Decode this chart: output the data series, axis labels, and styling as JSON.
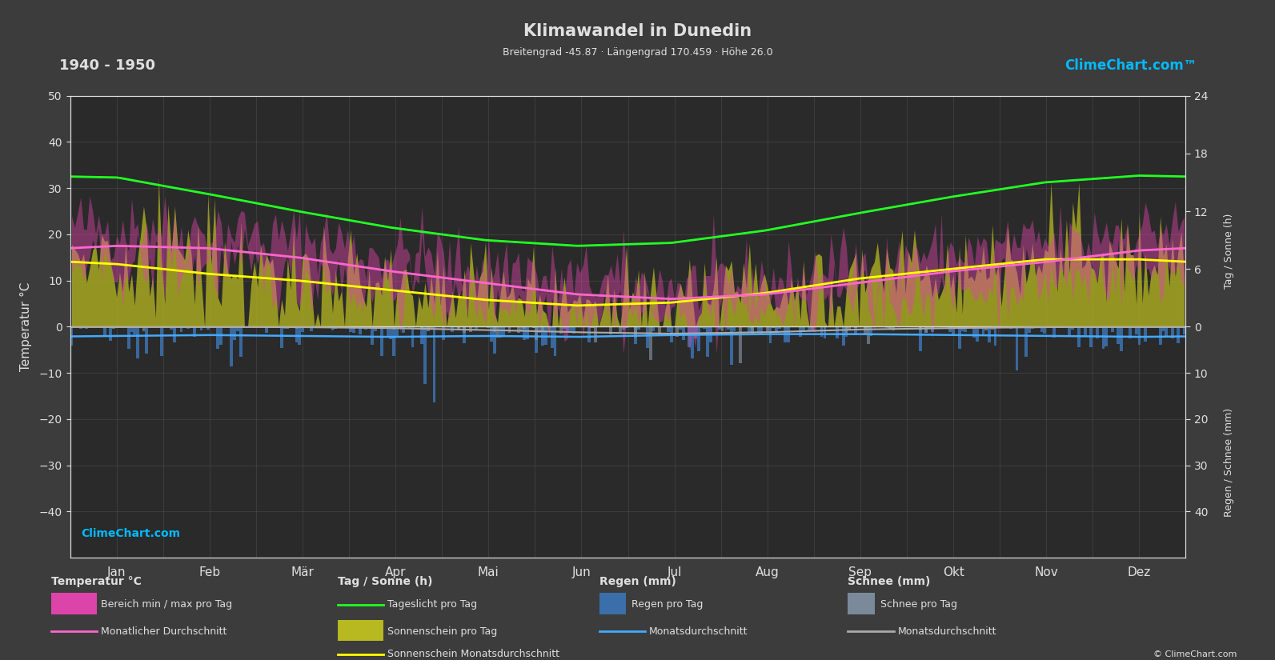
{
  "title": "Klimawandel in Dunedin",
  "subtitle": "Breitengrad -45.87 · Längengrad 170.459 · Höhe 26.0",
  "period": "1940 - 1950",
  "background_color": "#3c3c3c",
  "plot_bg_color": "#2a2a2a",
  "text_color": "#e0e0e0",
  "grid_color": "#555555",
  "months_labels": [
    "Jan",
    "Feb",
    "Mär",
    "Apr",
    "Mai",
    "Jun",
    "Jul",
    "Aug",
    "Sep",
    "Okt",
    "Nov",
    "Dez"
  ],
  "temp_ylim_min": -50,
  "temp_ylim_max": 50,
  "temp_yticks": [
    -40,
    -30,
    -20,
    -10,
    0,
    10,
    20,
    30,
    40,
    50
  ],
  "sun_ylim_min": 0,
  "sun_ylim_max": 24,
  "sun_yticks": [
    0,
    6,
    12,
    18,
    24
  ],
  "rain_ylim_min": 0,
  "rain_ylim_max": 40,
  "rain_yticks": [
    0,
    10,
    20,
    30,
    40
  ],
  "temp_max_monthly": [
    22,
    21,
    19,
    16,
    13,
    10,
    9,
    10,
    13,
    16,
    18,
    21
  ],
  "temp_min_monthly": [
    13,
    13,
    11,
    8,
    6,
    4,
    3,
    4,
    6,
    8,
    10,
    12
  ],
  "temp_avg_monthly": [
    17.5,
    17.0,
    15.0,
    12.0,
    9.5,
    7.0,
    6.0,
    7.0,
    9.5,
    12.0,
    14.0,
    16.5
  ],
  "daylight_monthly": [
    15.5,
    13.8,
    12.0,
    10.3,
    9.0,
    8.4,
    8.7,
    10.0,
    11.8,
    13.5,
    15.0,
    15.7
  ],
  "sunshine_monthly": [
    6.5,
    5.5,
    4.8,
    3.8,
    2.8,
    2.2,
    2.5,
    3.5,
    5.0,
    6.0,
    7.0,
    7.0
  ],
  "rain_daily_mean_mm": [
    2.5,
    2.2,
    2.5,
    2.8,
    2.5,
    2.8,
    2.2,
    2.0,
    2.0,
    2.2,
    2.5,
    2.8
  ],
  "rain_avg_monthly_mm": [
    2.0,
    1.8,
    2.0,
    2.2,
    2.0,
    2.2,
    1.8,
    1.6,
    1.6,
    1.8,
    2.0,
    2.2
  ],
  "snow_daily_mean_mm": [
    0.2,
    0.1,
    0.2,
    0.5,
    1.0,
    1.5,
    1.8,
    1.5,
    0.8,
    0.4,
    0.2,
    0.1
  ],
  "snow_avg_monthly_mm": [
    0.1,
    0.08,
    0.1,
    0.3,
    0.7,
    1.2,
    1.5,
    1.2,
    0.6,
    0.3,
    0.1,
    0.08
  ],
  "days_in_month": [
    31,
    28,
    31,
    30,
    31,
    30,
    31,
    31,
    30,
    31,
    30,
    31
  ]
}
